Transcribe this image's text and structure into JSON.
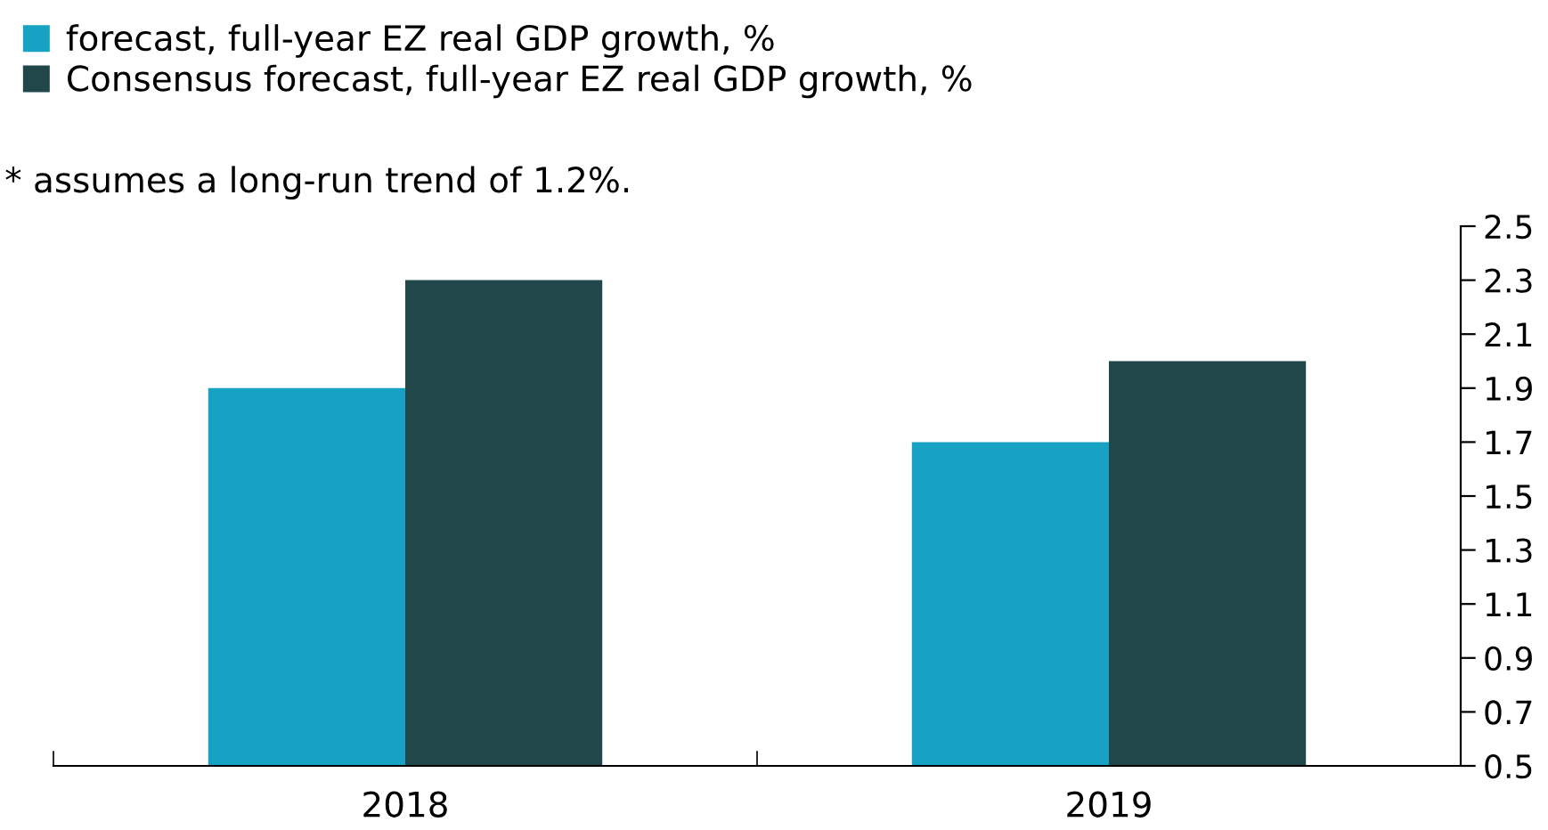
{
  "chart_data": {
    "type": "bar",
    "categories": [
      "2018",
      "2019"
    ],
    "series": [
      {
        "name": "forecast, full-year EZ real GDP growth, %",
        "color": "#17a2c4",
        "values": [
          1.9,
          1.7
        ]
      },
      {
        "name": "Consensus forecast, full-year EZ real GDP growth, %",
        "color": "#22474a",
        "values": [
          2.3,
          2.0
        ]
      }
    ],
    "ylim": [
      0.5,
      2.5
    ],
    "yticks": [
      {
        "value": 0.5,
        "label": "0.5"
      },
      {
        "value": 0.7,
        "label": "0.7"
      },
      {
        "value": 0.9,
        "label": "0.9"
      },
      {
        "value": 1.1,
        "label": "1.1"
      },
      {
        "value": 1.3,
        "label": "1.3"
      },
      {
        "value": 1.5,
        "label": "1.5"
      },
      {
        "value": 1.7,
        "label": "1.7"
      },
      {
        "value": 1.9,
        "label": "1.9"
      },
      {
        "value": 2.1,
        "label": "2.1"
      },
      {
        "value": 2.3,
        "label": "2.3"
      },
      {
        "value": 2.5,
        "label": "2.5"
      }
    ],
    "annotations": [
      "* assumes a long-run trend of 1.2%."
    ],
    "legend": "top left",
    "grid": false
  }
}
